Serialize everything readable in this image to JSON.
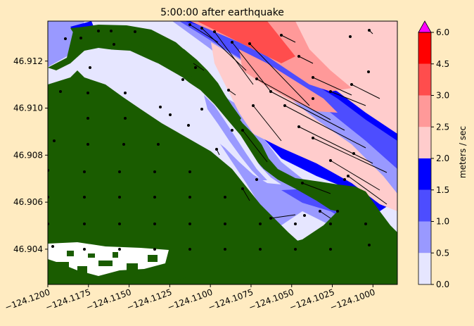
{
  "chart_data": {
    "type": "heatmap",
    "title": "5:00:00 after earthquake",
    "xlabel": "",
    "ylabel": "",
    "xlim": [
      -124.12,
      -124.0985
    ],
    "ylim": [
      46.9025,
      46.9137
    ],
    "x_ticks": [
      -124.12,
      -124.1175,
      -124.115,
      -124.1125,
      -124.11,
      -124.1075,
      -124.105,
      -124.1025,
      -124.1
    ],
    "x_tick_labels": [
      "−124.1200",
      "−124.1175",
      "−124.1150",
      "−124.1125",
      "−124.1100",
      "−124.1075",
      "−124.1050",
      "−124.1025",
      "−124.1000"
    ],
    "y_ticks": [
      46.904,
      46.906,
      46.908,
      46.91,
      46.912
    ],
    "y_tick_labels": [
      "46.904",
      "46.906",
      "46.908",
      "46.910",
      "46.912"
    ],
    "colorbar": {
      "label": "meters / sec",
      "levels": [
        0.0,
        0.5,
        1.0,
        1.5,
        2.0,
        2.5,
        3.0,
        4.5,
        6.0
      ],
      "tick_labels": [
        "0.0",
        "0.5",
        "1.0",
        "1.5",
        "2.0",
        "2.5",
        "3.0",
        "4.5",
        "6.0"
      ],
      "colors": [
        "#e6e6ff",
        "#9999ff",
        "#4d4dff",
        "#0000ff",
        "#ffcccc",
        "#ff9999",
        "#ff4d4d",
        "#ff0000"
      ],
      "extend_max_color": "#ff00ff"
    },
    "land_color": "#1a5c00",
    "grid": false,
    "background": "#ffebc1"
  }
}
